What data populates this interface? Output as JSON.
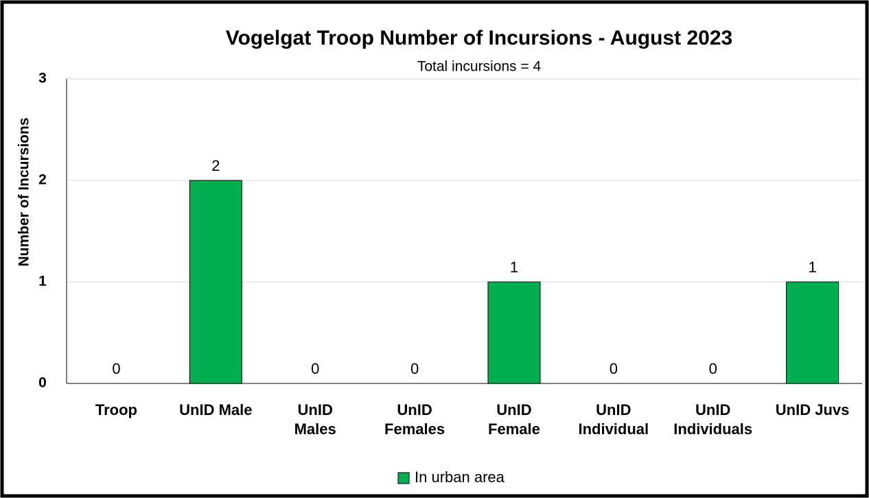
{
  "chart_data": {
    "type": "bar",
    "title": "Vogelgat Troop Number of Incursions - August 2023",
    "subtitle": "Total incursions = 4",
    "y_label": "Number of Incursions",
    "categories": [
      "Troop",
      "UnID Male",
      "UnID\nMales",
      "UnID\nFemales",
      "UnID\nFemale",
      "UnID\nIndividual",
      "UnID\nIndividuals",
      "UnID Juvs"
    ],
    "series": [
      {
        "name": "In urban area",
        "color": "#00b050",
        "values": [
          0,
          2,
          0,
          0,
          1,
          0,
          0,
          1
        ]
      }
    ],
    "ylim": [
      0,
      3
    ],
    "yticks": [
      0,
      1,
      2,
      3
    ],
    "grid": true,
    "legend": "bottom"
  }
}
